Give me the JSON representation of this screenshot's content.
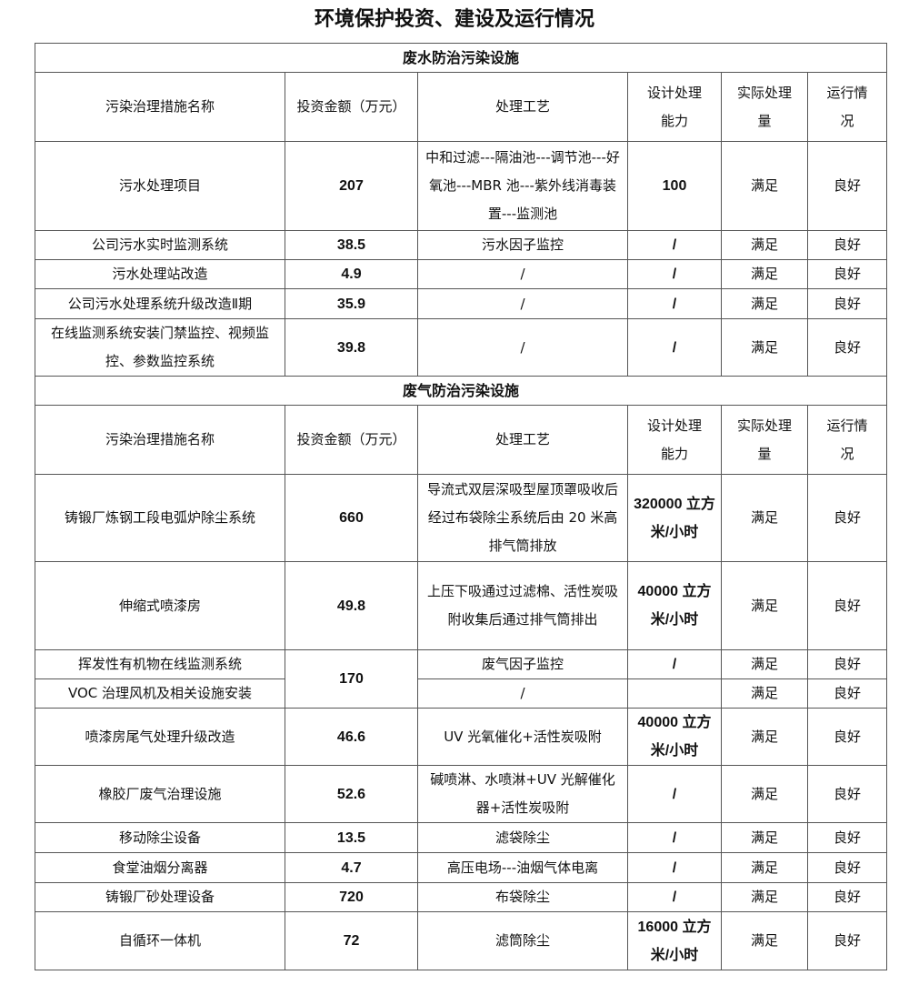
{
  "title": "环境保护投资、建设及运行情况",
  "headers": [
    "污染治理措施名称",
    "投资金额（万元）",
    "处理工艺",
    "设计处理\n能力",
    "实际处理\n量",
    "运行情\n况"
  ],
  "sections": [
    {
      "heading": "废水防治污染设施",
      "rows": [
        {
          "name": "污水处理项目",
          "amount": "207",
          "process": "中和过滤---隔油池---调节池---好氧池---MBR 池---紫外线消毒装置---监测池",
          "capacity": "100",
          "actual": "满足",
          "status": "良好",
          "h": 98
        },
        {
          "name": "公司污水实时监测系统",
          "amount": "38.5",
          "process": "污水因子监控",
          "capacity": "/",
          "actual": "满足",
          "status": "良好",
          "h": 32
        },
        {
          "name": "污水处理站改造",
          "amount": "4.9",
          "process": "/",
          "capacity": "/",
          "actual": "满足",
          "status": "良好",
          "h": 32
        },
        {
          "name": "公司污水处理系统升级改造Ⅱ期",
          "amount": "35.9",
          "process": "/",
          "capacity": "/",
          "actual": "满足",
          "status": "良好",
          "h": 33
        },
        {
          "name": "在线监测系统安装门禁监控、视频监控、参数监控系统",
          "amount": "39.8",
          "process": "/",
          "capacity": "/",
          "actual": "满足",
          "status": "良好",
          "h": 61
        }
      ]
    },
    {
      "heading": "废气防治污染设施",
      "rows": [
        {
          "name": "铸锻厂炼钢工段电弧炉除尘系统",
          "amount": "660",
          "process": "导流式双层深吸型屋顶罩吸收后经过布袋除尘系统后由 20 米高排气筒排放",
          "capacity": "320000 立方米/小时",
          "actual": "满足",
          "status": "良好",
          "h": 96
        },
        {
          "name": "伸缩式喷漆房",
          "amount": "49.8",
          "process": "上压下吸通过过滤棉、活性炭吸附收集后通过排气筒排出",
          "capacity": "40000 立方米/小时",
          "actual": "满足",
          "status": "良好",
          "h": 97
        },
        {
          "name": "挥发性有机物在线监测系统",
          "amount": "170",
          "amount_rowspan": 2,
          "process": "废气因子监控",
          "capacity": "/",
          "actual": "满足",
          "status": "良好",
          "h": 32
        },
        {
          "name": "VOC 治理风机及相关设施安装",
          "process": "/",
          "capacity": "",
          "actual": "满足",
          "status": "良好",
          "h": 32
        },
        {
          "name": "喷漆房尾气处理升级改造",
          "amount": "46.6",
          "process": "UV 光氧催化+活性炭吸附",
          "capacity": "40000 立方米/小时",
          "actual": "满足",
          "status": "良好",
          "h": 63
        },
        {
          "name": "橡胶厂废气治理设施",
          "amount": "52.6",
          "process": "碱喷淋、水喷淋+UV 光解催化器+活性炭吸附",
          "capacity": "/",
          "actual": "满足",
          "status": "良好",
          "h": 62
        },
        {
          "name": "移动除尘设备",
          "amount": "13.5",
          "process": "滤袋除尘",
          "capacity": "/",
          "actual": "满足",
          "status": "良好",
          "h": 33
        },
        {
          "name": "食堂油烟分离器",
          "amount": "4.7",
          "process": "高压电场---油烟气体电离",
          "capacity": "/",
          "actual": "满足",
          "status": "良好",
          "h": 33
        },
        {
          "name": "铸锻厂砂处理设备",
          "amount": "720",
          "process": "布袋除尘",
          "capacity": "/",
          "actual": "满足",
          "status": "良好",
          "h": 32
        },
        {
          "name": "自循环一体机",
          "amount": "72",
          "process": "滤筒除尘",
          "capacity": "16000 立方米/小时",
          "actual": "满足",
          "status": "良好",
          "h": 64
        }
      ]
    }
  ]
}
